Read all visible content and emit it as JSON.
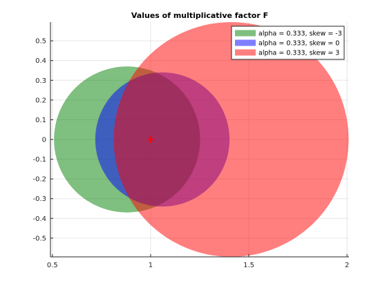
{
  "chart_data": {
    "type": "scatter",
    "title": "Values of multiplicative factor F",
    "xlabel": "",
    "ylabel": "",
    "xlim": [
      0.49,
      2.01
    ],
    "ylim": [
      -0.595,
      0.595
    ],
    "grid": true,
    "legend_position": "top-right",
    "x_ticks": [
      0.5,
      1,
      1.5,
      2
    ],
    "x_tick_labels": [
      "0.5",
      "1",
      "1.5",
      "2"
    ],
    "y_ticks": [
      0.5,
      0.4,
      0.3,
      0.2,
      0.1,
      0,
      -0.1,
      -0.2,
      -0.3,
      -0.4,
      -0.5
    ],
    "y_tick_labels": [
      "0.5",
      "0.4",
      "0.3",
      "0.2",
      "0.1",
      "0",
      "-0.1",
      "-0.2",
      "-0.3",
      "-0.4",
      "-0.5"
    ],
    "series": [
      {
        "name": "alpha = 0.333, skew = -3",
        "color": "#008000",
        "opacity": 0.5,
        "center": [
          0.88,
          0
        ],
        "radius": 0.37
      },
      {
        "name": "alpha = 0.333, skew = 0",
        "color": "#0000ff",
        "opacity": 0.5,
        "center": [
          1.06,
          0
        ],
        "radius": 0.34
      },
      {
        "name": "alpha = 0.333, skew = 3",
        "color": "#ff0000",
        "opacity": 0.5,
        "center": [
          1.41,
          0
        ],
        "radius": 0.595
      }
    ],
    "marker": {
      "x": 1,
      "y": 0,
      "symbol": "+",
      "color": "#ff0000"
    }
  }
}
